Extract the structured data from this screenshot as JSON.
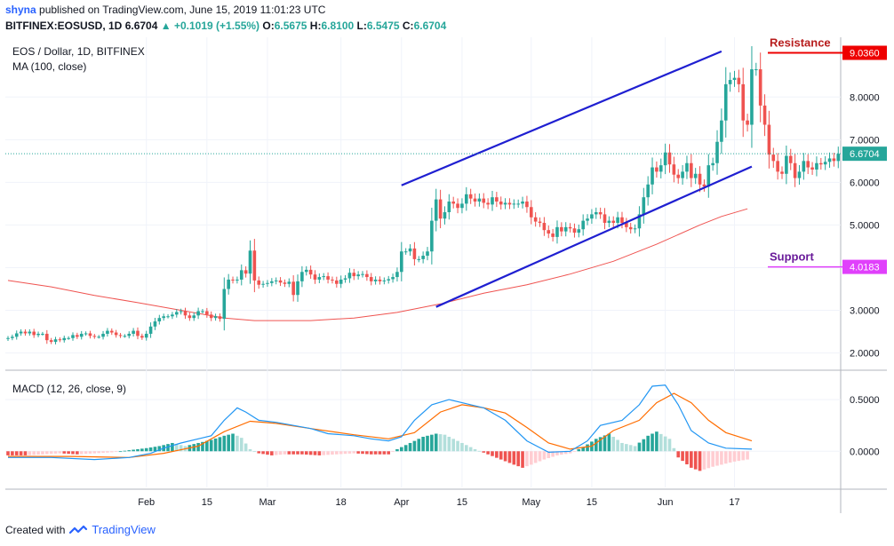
{
  "header": {
    "user": "shyna",
    "published": "published on TradingView.com, June 15, 2019 11:01:23 UTC",
    "symbol": "BITFINEX:EOSUSD, 1D",
    "last": "6.6704",
    "change": "+0.1019 (+1.55%)",
    "o_label": "O:",
    "o": "6.5675",
    "h_label": "H:",
    "h": "6.8100",
    "l_label": "L:",
    "l": "6.5475",
    "c_label": "C:",
    "c": "6.6704"
  },
  "colors": {
    "up": "#26a69a",
    "down": "#ef5350",
    "ma": "#ef5350",
    "trendline": "#1f1fd1",
    "macd": "#2196f3",
    "signal": "#ff6d00",
    "resistance": "#ee0000",
    "support": "#e040fb",
    "hist_up_strong": "#26a69a",
    "hist_up_weak": "#b2dfdb",
    "hist_down_strong": "#ef5350",
    "hist_down_weak": "#ffcdd2",
    "text": "#131722",
    "grid": "#f0f3fa",
    "border": "#b2b5be"
  },
  "chart_data": [
    {
      "type": "candlestick",
      "title": "EOS / Dollar, 1D, BITFINEX",
      "indicator": "MA (100, close)",
      "ylim": [
        1.7,
        9.4
      ],
      "y_ticks": [
        2.0,
        3.0,
        4.0,
        5.0,
        6.0,
        7.0,
        8.0
      ],
      "y_tick_labels": [
        "2.0000",
        "3.0000",
        "4.0000",
        "5.0000",
        "6.0000",
        "7.0000",
        "8.0000"
      ],
      "x_ticks": [
        {
          "day": 32,
          "label": "Feb"
        },
        {
          "day": 46,
          "label": "15"
        },
        {
          "day": 60,
          "label": "Mar"
        },
        {
          "day": 77,
          "label": "18"
        },
        {
          "day": 91,
          "label": "Apr"
        },
        {
          "day": 105,
          "label": "15"
        },
        {
          "day": 121,
          "label": "May"
        },
        {
          "day": 135,
          "label": "15"
        },
        {
          "day": 152,
          "label": "Jun"
        },
        {
          "day": 168,
          "label": "17"
        }
      ],
      "close": [
        2.35,
        2.38,
        2.46,
        2.5,
        2.46,
        2.5,
        2.42,
        2.45,
        2.45,
        2.3,
        2.26,
        2.32,
        2.3,
        2.35,
        2.35,
        2.42,
        2.38,
        2.45,
        2.46,
        2.4,
        2.38,
        2.38,
        2.45,
        2.52,
        2.48,
        2.42,
        2.4,
        2.4,
        2.45,
        2.52,
        2.4,
        2.36,
        2.45,
        2.62,
        2.74,
        2.82,
        2.86,
        2.86,
        2.9,
        2.96,
        2.98,
        2.88,
        2.82,
        2.88,
        2.98,
        2.98,
        2.9,
        2.82,
        2.86,
        2.8,
        3.5,
        3.72,
        3.7,
        3.72,
        3.94,
        3.86,
        4.4,
        3.7,
        3.6,
        3.62,
        3.64,
        3.68,
        3.7,
        3.65,
        3.62,
        3.67,
        3.36,
        3.68,
        3.9,
        3.95,
        3.84,
        3.72,
        3.78,
        3.8,
        3.72,
        3.7,
        3.62,
        3.72,
        3.75,
        3.88,
        3.8,
        3.84,
        3.85,
        3.78,
        3.68,
        3.72,
        3.68,
        3.7,
        3.73,
        3.78,
        3.9,
        4.38,
        4.38,
        4.45,
        4.2,
        4.2,
        4.28,
        4.38,
        5.1,
        5.6,
        5.15,
        5.3,
        5.55,
        5.5,
        5.4,
        5.5,
        5.72,
        5.62,
        5.55,
        5.62,
        5.52,
        5.48,
        5.65,
        5.55,
        5.48,
        5.52,
        5.48,
        5.5,
        5.5,
        5.55,
        5.42,
        5.18,
        5.08,
        5.05,
        4.88,
        4.8,
        4.72,
        4.95,
        4.85,
        4.95,
        4.92,
        4.82,
        4.9,
        5.1,
        5.15,
        5.25,
        5.3,
        5.25,
        5.05,
        5.1,
        5.05,
        5.18,
        5.05,
        4.95,
        4.9,
        4.92,
        5.25,
        5.65,
        5.95,
        6.35,
        6.25,
        6.4,
        6.7,
        6.42,
        6.18,
        6.1,
        6.25,
        6.45,
        6.1,
        6.2,
        5.95,
        5.9,
        6.4,
        6.45,
        6.95,
        7.45,
        8.3,
        8.4,
        8.45,
        8.3,
        7.45,
        7.35,
        8.65,
        8.65,
        7.8,
        7.35,
        6.65,
        6.5,
        6.25,
        6.2,
        6.62,
        6.45,
        6.1,
        6.25,
        6.5,
        6.35,
        6.3,
        6.45,
        6.42,
        6.48,
        6.56,
        6.5,
        6.67
      ],
      "ma": [
        {
          "day": 0,
          "value": 3.7
        },
        {
          "day": 10,
          "value": 3.55
        },
        {
          "day": 20,
          "value": 3.35
        },
        {
          "day": 30,
          "value": 3.18
        },
        {
          "day": 40,
          "value": 3.0
        },
        {
          "day": 50,
          "value": 2.82
        },
        {
          "day": 57,
          "value": 2.76
        },
        {
          "day": 70,
          "value": 2.76
        },
        {
          "day": 80,
          "value": 2.82
        },
        {
          "day": 90,
          "value": 2.95
        },
        {
          "day": 100,
          "value": 3.15
        },
        {
          "day": 110,
          "value": 3.4
        },
        {
          "day": 120,
          "value": 3.6
        },
        {
          "day": 130,
          "value": 3.85
        },
        {
          "day": 140,
          "value": 4.15
        },
        {
          "day": 150,
          "value": 4.55
        },
        {
          "day": 160,
          "value": 5.0
        },
        {
          "day": 165,
          "value": 5.2
        },
        {
          "day": 171,
          "value": 5.38
        }
      ],
      "trendlines": [
        {
          "from": {
            "day": 91,
            "value": 5.93
          },
          "to": {
            "day": 165,
            "value": 9.07
          }
        },
        {
          "from": {
            "day": 99,
            "value": 3.08
          },
          "to": {
            "day": 172,
            "value": 6.37
          }
        }
      ],
      "price_labels": [
        {
          "value": 9.036,
          "label": "9.0360",
          "kind": "resistance"
        },
        {
          "value": 6.6704,
          "label": "6.6704",
          "kind": "last"
        },
        {
          "value": 4.0183,
          "label": "4.0183",
          "kind": "support"
        }
      ],
      "annotations": [
        {
          "text": "Resistance",
          "value": 9.036
        },
        {
          "text": "Support",
          "value": 4.0183
        }
      ]
    },
    {
      "type": "macd",
      "title": "MACD (12, 26, close, 9)",
      "ylim": [
        -0.35,
        0.75
      ],
      "y_ticks": [
        0.5,
        0.0
      ],
      "y_tick_labels": [
        "0.5000",
        "0.0000"
      ],
      "macd": [
        {
          "day": 0,
          "value": -0.06
        },
        {
          "day": 10,
          "value": -0.06
        },
        {
          "day": 20,
          "value": -0.08
        },
        {
          "day": 28,
          "value": -0.06
        },
        {
          "day": 33,
          "value": -0.02
        },
        {
          "day": 36,
          "value": 0.03
        },
        {
          "day": 40,
          "value": 0.08
        },
        {
          "day": 44,
          "value": 0.12
        },
        {
          "day": 47,
          "value": 0.15
        },
        {
          "day": 50,
          "value": 0.3
        },
        {
          "day": 53,
          "value": 0.42
        },
        {
          "day": 55,
          "value": 0.38
        },
        {
          "day": 58,
          "value": 0.3
        },
        {
          "day": 62,
          "value": 0.28
        },
        {
          "day": 66,
          "value": 0.25
        },
        {
          "day": 70,
          "value": 0.22
        },
        {
          "day": 74,
          "value": 0.17
        },
        {
          "day": 80,
          "value": 0.15
        },
        {
          "day": 84,
          "value": 0.12
        },
        {
          "day": 88,
          "value": 0.1
        },
        {
          "day": 91,
          "value": 0.14
        },
        {
          "day": 94,
          "value": 0.3
        },
        {
          "day": 98,
          "value": 0.45
        },
        {
          "day": 102,
          "value": 0.5
        },
        {
          "day": 105,
          "value": 0.47
        },
        {
          "day": 110,
          "value": 0.42
        },
        {
          "day": 115,
          "value": 0.3
        },
        {
          "day": 120,
          "value": 0.1
        },
        {
          "day": 125,
          "value": -0.01
        },
        {
          "day": 130,
          "value": 0.0
        },
        {
          "day": 134,
          "value": 0.1
        },
        {
          "day": 137,
          "value": 0.25
        },
        {
          "day": 142,
          "value": 0.3
        },
        {
          "day": 146,
          "value": 0.45
        },
        {
          "day": 149,
          "value": 0.63
        },
        {
          "day": 152,
          "value": 0.64
        },
        {
          "day": 155,
          "value": 0.45
        },
        {
          "day": 158,
          "value": 0.2
        },
        {
          "day": 162,
          "value": 0.08
        },
        {
          "day": 166,
          "value": 0.03
        },
        {
          "day": 172,
          "value": 0.02
        }
      ],
      "signal": [
        {
          "day": 0,
          "value": -0.05
        },
        {
          "day": 15,
          "value": -0.05
        },
        {
          "day": 28,
          "value": -0.06
        },
        {
          "day": 36,
          "value": -0.02
        },
        {
          "day": 44,
          "value": 0.05
        },
        {
          "day": 50,
          "value": 0.19
        },
        {
          "day": 56,
          "value": 0.29
        },
        {
          "day": 62,
          "value": 0.27
        },
        {
          "day": 70,
          "value": 0.22
        },
        {
          "day": 80,
          "value": 0.16
        },
        {
          "day": 88,
          "value": 0.12
        },
        {
          "day": 94,
          "value": 0.18
        },
        {
          "day": 100,
          "value": 0.38
        },
        {
          "day": 105,
          "value": 0.45
        },
        {
          "day": 110,
          "value": 0.42
        },
        {
          "day": 115,
          "value": 0.37
        },
        {
          "day": 120,
          "value": 0.23
        },
        {
          "day": 125,
          "value": 0.08
        },
        {
          "day": 130,
          "value": 0.02
        },
        {
          "day": 135,
          "value": 0.05
        },
        {
          "day": 140,
          "value": 0.2
        },
        {
          "day": 146,
          "value": 0.3
        },
        {
          "day": 150,
          "value": 0.47
        },
        {
          "day": 154,
          "value": 0.56
        },
        {
          "day": 158,
          "value": 0.47
        },
        {
          "day": 162,
          "value": 0.3
        },
        {
          "day": 166,
          "value": 0.18
        },
        {
          "day": 172,
          "value": 0.1
        }
      ],
      "histogram": [
        {
          "day": 0,
          "value": -0.04
        },
        {
          "day": 4,
          "value": -0.04
        },
        {
          "day": 8,
          "value": -0.03
        },
        {
          "day": 12,
          "value": -0.02
        },
        {
          "day": 16,
          "value": -0.03
        },
        {
          "day": 20,
          "value": -0.02
        },
        {
          "day": 24,
          "value": -0.01
        },
        {
          "day": 28,
          "value": 0.01
        },
        {
          "day": 32,
          "value": 0.03
        },
        {
          "day": 35,
          "value": 0.05
        },
        {
          "day": 38,
          "value": 0.08
        },
        {
          "day": 41,
          "value": 0.05
        },
        {
          "day": 44,
          "value": 0.08
        },
        {
          "day": 47,
          "value": 0.11
        },
        {
          "day": 50,
          "value": 0.15
        },
        {
          "day": 52,
          "value": 0.17
        },
        {
          "day": 54,
          "value": 0.13
        },
        {
          "day": 56,
          "value": 0.02
        },
        {
          "day": 58,
          "value": -0.02
        },
        {
          "day": 61,
          "value": -0.04
        },
        {
          "day": 64,
          "value": -0.03
        },
        {
          "day": 68,
          "value": -0.03
        },
        {
          "day": 72,
          "value": -0.04
        },
        {
          "day": 76,
          "value": -0.03
        },
        {
          "day": 80,
          "value": -0.02
        },
        {
          "day": 84,
          "value": -0.03
        },
        {
          "day": 88,
          "value": -0.03
        },
        {
          "day": 90,
          "value": 0.02
        },
        {
          "day": 93,
          "value": 0.08
        },
        {
          "day": 96,
          "value": 0.14
        },
        {
          "day": 99,
          "value": 0.17
        },
        {
          "day": 101,
          "value": 0.16
        },
        {
          "day": 103,
          "value": 0.12
        },
        {
          "day": 106,
          "value": 0.06
        },
        {
          "day": 108,
          "value": 0.02
        },
        {
          "day": 111,
          "value": -0.03
        },
        {
          "day": 114,
          "value": -0.08
        },
        {
          "day": 117,
          "value": -0.13
        },
        {
          "day": 119,
          "value": -0.16
        },
        {
          "day": 121,
          "value": -0.13
        },
        {
          "day": 124,
          "value": -0.08
        },
        {
          "day": 127,
          "value": -0.04
        },
        {
          "day": 130,
          "value": -0.02
        },
        {
          "day": 133,
          "value": 0.04
        },
        {
          "day": 136,
          "value": 0.12
        },
        {
          "day": 139,
          "value": 0.17
        },
        {
          "day": 142,
          "value": 0.08
        },
        {
          "day": 145,
          "value": 0.05
        },
        {
          "day": 148,
          "value": 0.15
        },
        {
          "day": 150,
          "value": 0.19
        },
        {
          "day": 153,
          "value": 0.12
        },
        {
          "day": 155,
          "value": -0.06
        },
        {
          "day": 158,
          "value": -0.16
        },
        {
          "day": 160,
          "value": -0.19
        },
        {
          "day": 163,
          "value": -0.15
        },
        {
          "day": 166,
          "value": -0.12
        },
        {
          "day": 168,
          "value": -0.1
        },
        {
          "day": 171,
          "value": -0.08
        }
      ]
    }
  ],
  "footer": {
    "created_with": "Created with",
    "brand": "TradingView"
  }
}
